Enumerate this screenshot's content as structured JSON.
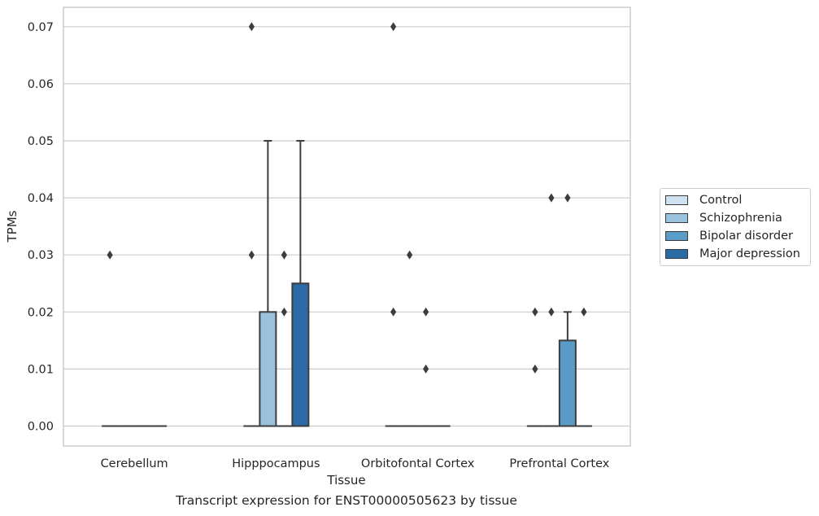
{
  "chart_data": {
    "type": "box",
    "title": "",
    "caption": "Transcript expression for ENST00000505623 by tissue",
    "xlabel": "Tissue",
    "ylabel": "TPMs",
    "ylim": [
      -0.0035,
      0.0735
    ],
    "yticks": [
      0.0,
      0.01,
      0.02,
      0.03,
      0.04,
      0.05,
      0.06,
      0.07
    ],
    "ytick_labels": [
      "0.00",
      "0.01",
      "0.02",
      "0.03",
      "0.04",
      "0.05",
      "0.06",
      "0.07"
    ],
    "grid": true,
    "categories": [
      "Cerebellum",
      "Hipppocampus",
      "Orbitofontal Cortex",
      "Prefrontal Cortex"
    ],
    "legend_position": "right",
    "series": [
      {
        "name": "Control",
        "color": "#d0e1f1",
        "boxes": [
          {
            "category": "Cerebellum",
            "q1": 0,
            "median": 0,
            "q3": 0,
            "whisker_low": 0,
            "whisker_high": 0,
            "outliers": [
              0.03
            ]
          },
          {
            "category": "Hipppocampus",
            "q1": 0,
            "median": 0,
            "q3": 0,
            "whisker_low": 0,
            "whisker_high": 0,
            "outliers": [
              0.03,
              0.07
            ]
          },
          {
            "category": "Orbitofontal Cortex",
            "q1": 0,
            "median": 0,
            "q3": 0,
            "whisker_low": 0,
            "whisker_high": 0,
            "outliers": [
              0.02,
              0.07
            ]
          },
          {
            "category": "Prefrontal Cortex",
            "q1": 0,
            "median": 0,
            "q3": 0,
            "whisker_low": 0,
            "whisker_high": 0,
            "outliers": [
              0.01,
              0.02
            ]
          }
        ]
      },
      {
        "name": "Schizophrenia",
        "color": "#9ac2dd",
        "boxes": [
          {
            "category": "Cerebellum",
            "q1": 0,
            "median": 0,
            "q3": 0,
            "whisker_low": 0,
            "whisker_high": 0,
            "outliers": []
          },
          {
            "category": "Hipppocampus",
            "q1": 0,
            "median": 0,
            "q3": 0.02,
            "whisker_low": 0,
            "whisker_high": 0.05,
            "outliers": []
          },
          {
            "category": "Orbitofontal Cortex",
            "q1": 0,
            "median": 0,
            "q3": 0,
            "whisker_low": 0,
            "whisker_high": 0,
            "outliers": [
              0.03
            ]
          },
          {
            "category": "Prefrontal Cortex",
            "q1": 0,
            "median": 0,
            "q3": 0,
            "whisker_low": 0,
            "whisker_high": 0,
            "outliers": [
              0.02,
              0.04
            ]
          }
        ]
      },
      {
        "name": "Bipolar disorder",
        "color": "#5a9bc8",
        "boxes": [
          {
            "category": "Cerebellum",
            "q1": 0,
            "median": 0,
            "q3": 0,
            "whisker_low": 0,
            "whisker_high": 0,
            "outliers": []
          },
          {
            "category": "Hipppocampus",
            "q1": 0,
            "median": 0,
            "q3": 0,
            "whisker_low": 0,
            "whisker_high": 0,
            "outliers": [
              0.02,
              0.03
            ]
          },
          {
            "category": "Orbitofontal Cortex",
            "q1": 0,
            "median": 0,
            "q3": 0,
            "whisker_low": 0,
            "whisker_high": 0,
            "outliers": [
              0.01,
              0.02
            ]
          },
          {
            "category": "Prefrontal Cortex",
            "q1": 0,
            "median": 0,
            "q3": 0.015,
            "whisker_low": 0,
            "whisker_high": 0.02,
            "outliers": [
              0.04
            ]
          }
        ]
      },
      {
        "name": "Major depression",
        "color": "#2b6aa6",
        "boxes": [
          {
            "category": "Cerebellum",
            "q1": 0,
            "median": 0,
            "q3": 0,
            "whisker_low": 0,
            "whisker_high": 0,
            "outliers": []
          },
          {
            "category": "Hipppocampus",
            "q1": 0,
            "median": 0,
            "q3": 0.025,
            "whisker_low": 0,
            "whisker_high": 0.05,
            "outliers": []
          },
          {
            "category": "Orbitofontal Cortex",
            "q1": 0,
            "median": 0,
            "q3": 0,
            "whisker_low": 0,
            "whisker_high": 0,
            "outliers": []
          },
          {
            "category": "Prefrontal Cortex",
            "q1": 0,
            "median": 0,
            "q3": 0,
            "whisker_low": 0,
            "whisker_high": 0,
            "outliers": [
              0.02
            ]
          }
        ]
      }
    ]
  }
}
